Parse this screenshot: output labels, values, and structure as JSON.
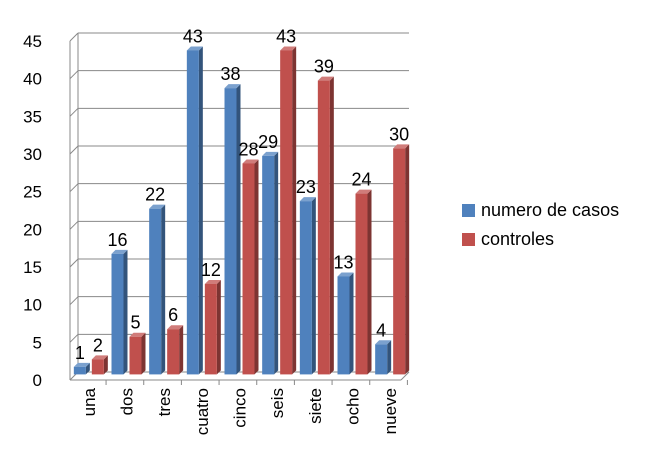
{
  "chart_data": {
    "type": "bar",
    "categories": [
      "una",
      "dos",
      "tres",
      "cuatro",
      "cinco",
      "seis",
      "siete",
      "ocho",
      "nueve"
    ],
    "series": [
      {
        "name": "numero de casos",
        "values": [
          1,
          16,
          22,
          43,
          38,
          29,
          23,
          13,
          4
        ],
        "color": "#4F81BD"
      },
      {
        "name": "controles",
        "values": [
          2,
          5,
          6,
          12,
          28,
          43,
          39,
          24,
          30
        ],
        "color": "#C0504D"
      }
    ],
    "yticks": [
      0,
      5,
      10,
      15,
      20,
      25,
      30,
      35,
      40,
      45
    ],
    "ylim": [
      0,
      45
    ],
    "grid": true,
    "legend": "right",
    "style": "3d-clustered-column"
  }
}
